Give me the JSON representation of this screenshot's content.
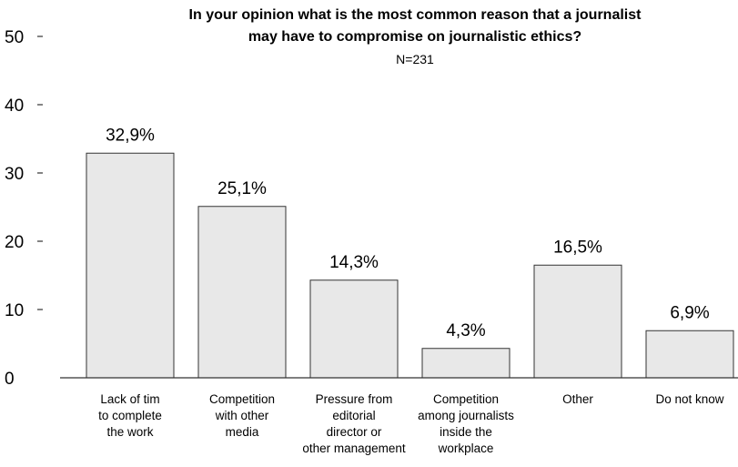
{
  "chart_data": {
    "type": "bar",
    "title_lines": [
      "In your opinion what is the most common reason that a journalist",
      "may have to compromise on journalistic ethics?"
    ],
    "subtitle": "N=231",
    "categories": [
      [
        "Lack of tim",
        "to complete",
        "the work"
      ],
      [
        "Competition",
        "with other",
        "media"
      ],
      [
        "Pressure from",
        "editorial",
        "director or",
        "other management"
      ],
      [
        "Competition",
        "among journalists",
        "inside the",
        "workplace"
      ],
      [
        "Other"
      ],
      [
        "Do not know"
      ]
    ],
    "values": [
      32.9,
      25.1,
      14.3,
      4.3,
      16.5,
      6.9
    ],
    "data_labels": [
      "32,9%",
      "25,1%",
      "14,3%",
      "4,3%",
      "16,5%",
      "6,9%"
    ],
    "yticks": [
      0,
      10,
      20,
      30,
      40,
      50
    ],
    "ylim": [
      0,
      50
    ],
    "grid": false,
    "bar_fill": "#e8e8e8",
    "bar_stroke": "#333333"
  }
}
